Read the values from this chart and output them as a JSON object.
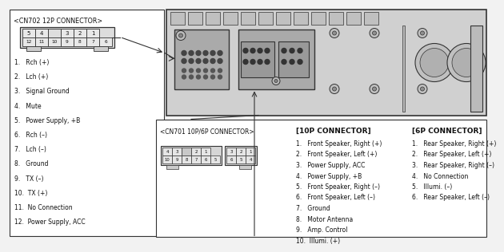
{
  "bg_color": "#f2f2f2",
  "title_cn702": "<CN702 12P CONNECTOR>",
  "cn702_top_labels": [
    "5",
    "4",
    "",
    "3",
    "2",
    "1"
  ],
  "cn702_bot_labels": [
    "12",
    "11",
    "10",
    "9",
    "8",
    "7",
    "6"
  ],
  "cn702_list": [
    "1.   Rch (+)",
    "2.   Lch (+)",
    "3.   Signal Ground",
    "4.   Mute",
    "5.   Power Supply, +B",
    "6.   Rch (–)",
    "7.   Lch (–)",
    "8.   Ground",
    "9.   TX (–)",
    "10.  TX (+)",
    "11.  No Connection",
    "12.  Power Supply, ACC"
  ],
  "title_cn701": "<CN701 10P/6P CONNECTOR>",
  "title_10p": "[10P CONNECTOR]",
  "title_6p": "[6P CONNECTOR]",
  "list_10p": [
    "1.   Front Speaker, Right (+)",
    "2.   Front Speaker, Left (+)",
    "3.   Power Supply, ACC",
    "4.   Power Supply, +B",
    "5.   Front Speaker, Right (–)",
    "6.   Front Speaker, Left (–)",
    "7.   Ground",
    "8.   Motor Antenna",
    "9.   Amp. Control",
    "10.  Illumi. (+)"
  ],
  "list_6p": [
    "1.   Rear Speaker, Right (+)",
    "2.   Rear Speaker, Left (+)",
    "3.   Rear Speaker, Right (–)",
    "4.   No Connection",
    "5.   Illumi. (–)",
    "6.   Rear Speaker, Left (–)"
  ],
  "lc": "#333333",
  "tc": "#111111",
  "bc": "#ffffff",
  "hu_bg": "#cccccc",
  "conn_bg": "#999999",
  "pin_color": "#555555"
}
